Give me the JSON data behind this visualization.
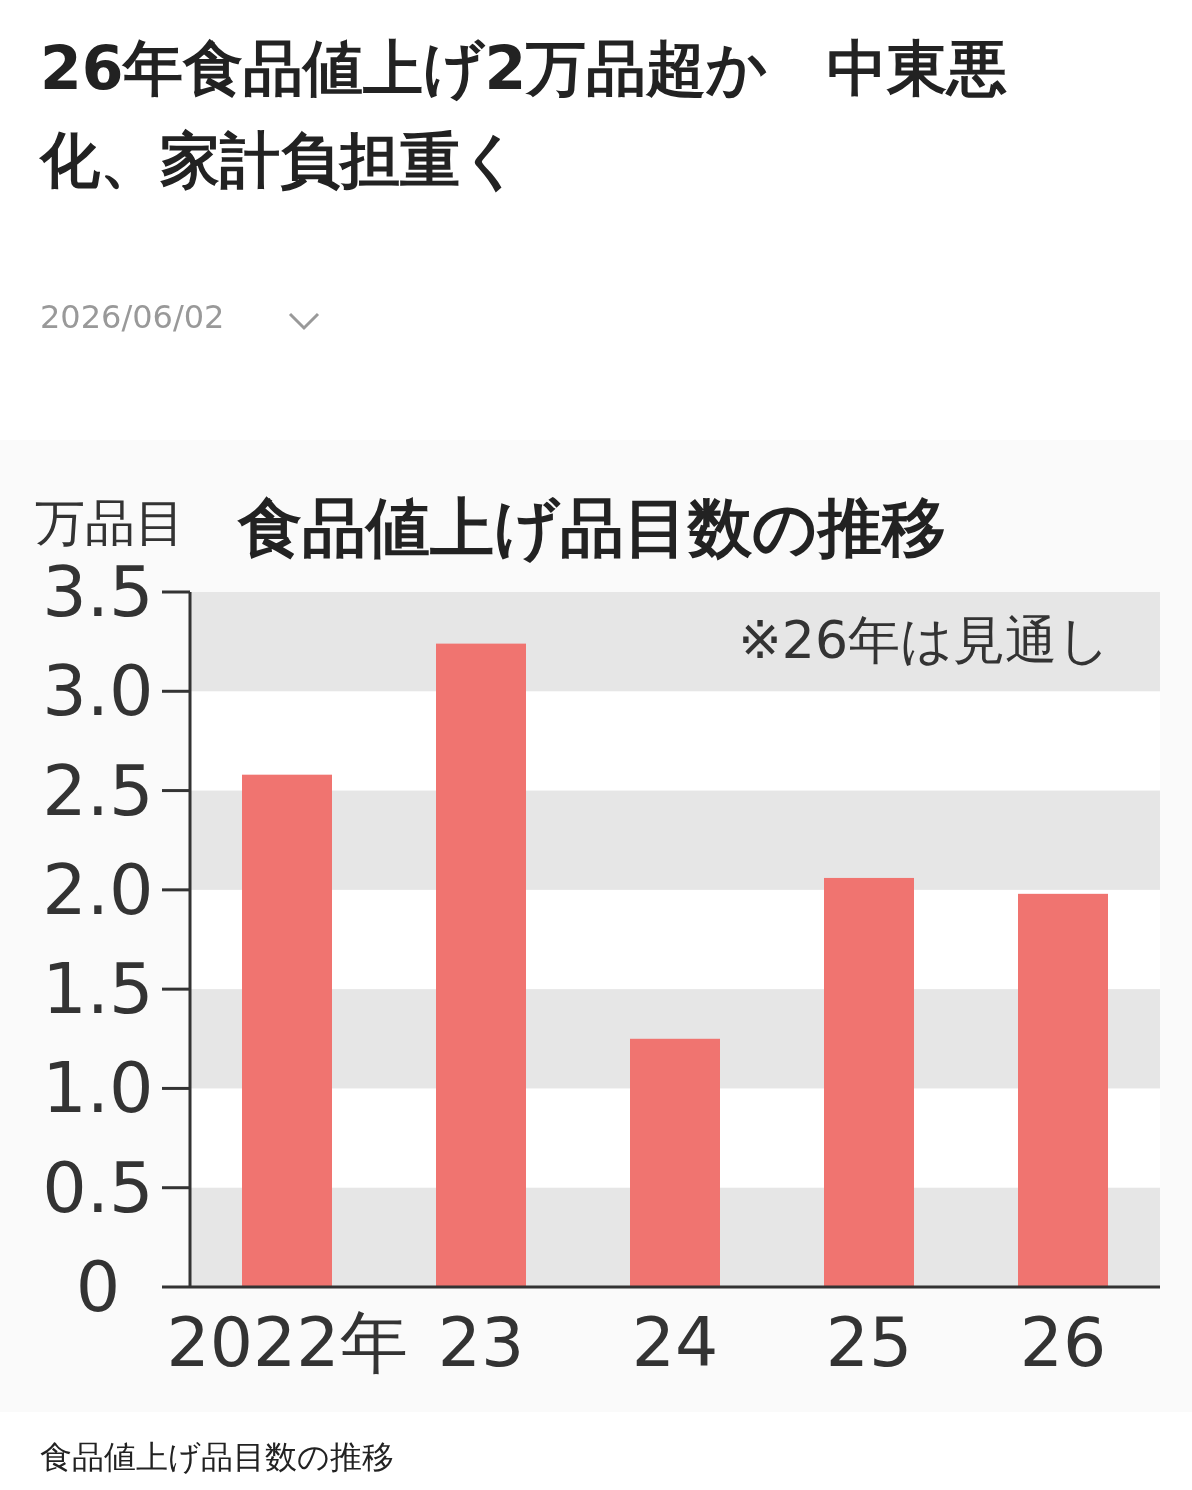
{
  "chart_data": {
    "type": "bar",
    "title": "26年食品値上げ2万品超か　中東悪化、家計負担重く",
    "subtitle": "食品値上げ品目数の推移",
    "ylabel": "万品目",
    "categories": [
      "2022年",
      "23",
      "24",
      "25",
      "26"
    ],
    "values": [
      2.58,
      3.24,
      1.25,
      2.06,
      1.98
    ],
    "color": "#f07470",
    "ylim": [
      0,
      3.5
    ],
    "yticks": [
      0,
      0.5,
      {
        "value": 1,
        "label": "1.0"
      },
      1.5,
      {
        "value": 2,
        "label": "2.0"
      },
      2.5,
      {
        "value": 3,
        "label": "3.0"
      },
      3.5
    ],
    "bands": [
      {
        "axis": "y",
        "from": 0,
        "to": 0.5,
        "color": "#e6e6e6"
      },
      {
        "axis": "y",
        "from": 1,
        "to": 1.5,
        "color": "#e6e6e6"
      },
      {
        "axis": "y",
        "from": 2,
        "to": 2.5,
        "color": "#e6e6e6"
      },
      {
        "axis": "y",
        "from": 3,
        "to": 3.5,
        "color": "#e6e6e6"
      }
    ],
    "annotations": [
      "2026/06/02",
      "※26年は見通し",
      "食品値上げ品目数の推移"
    ]
  }
}
